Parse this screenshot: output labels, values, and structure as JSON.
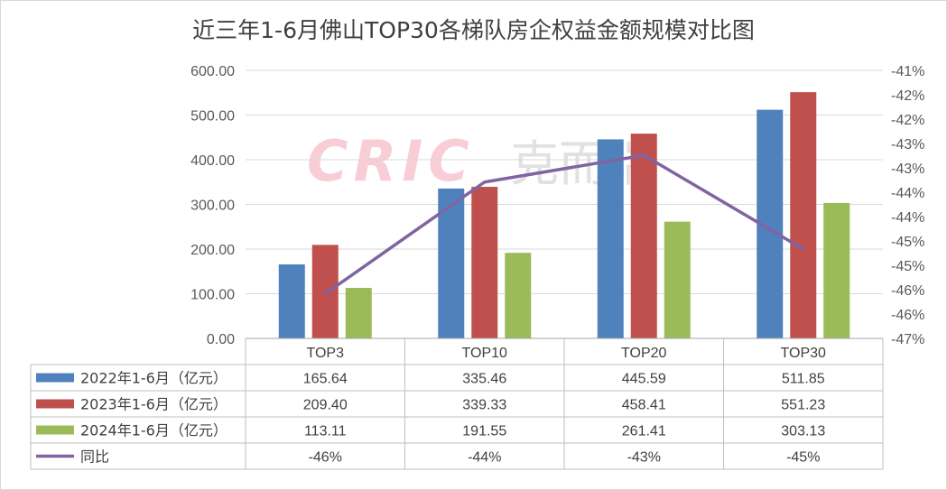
{
  "title": "近三年1-6月佛山TOP30各梯队房企权益金额规模对比图",
  "watermark": {
    "latin": "CRIC",
    "cn": "克而瑞"
  },
  "chart_data": {
    "type": "bar",
    "categories": [
      "TOP3",
      "TOP10",
      "TOP20",
      "TOP30"
    ],
    "series": [
      {
        "name": "2022年1-6月（亿元）",
        "type": "bar",
        "color": "#4f81bd",
        "values": [
          165.64,
          335.46,
          445.59,
          511.85
        ],
        "labels": [
          "165.64",
          "335.46",
          "445.59",
          "511.85"
        ]
      },
      {
        "name": "2023年1-6月（亿元）",
        "type": "bar",
        "color": "#c0504d",
        "values": [
          209.4,
          339.33,
          458.41,
          551.23
        ],
        "labels": [
          "209.40",
          "339.33",
          "458.41",
          "551.23"
        ]
      },
      {
        "name": "2024年1-6月（亿元）",
        "type": "bar",
        "color": "#9bbb59",
        "values": [
          113.11,
          191.55,
          261.41,
          303.13
        ],
        "labels": [
          "113.11",
          "191.55",
          "261.41",
          "303.13"
        ]
      },
      {
        "name": "同比",
        "type": "line",
        "axis": "right",
        "color": "#8064a2",
        "values": [
          -0.46,
          -0.435,
          -0.429,
          -0.45
        ],
        "labels": [
          "-46%",
          "-44%",
          "-43%",
          "-45%"
        ]
      }
    ],
    "y_left": {
      "ylim": [
        0,
        600
      ],
      "ticks": [
        "600.00",
        "500.00",
        "400.00",
        "300.00",
        "200.00",
        "100.00",
        "0.00"
      ]
    },
    "y_right": {
      "ylim": [
        -0.47,
        -0.41
      ],
      "ticks": [
        "-41%",
        "-42%",
        "-42%",
        "-43%",
        "-43%",
        "-44%",
        "-44%",
        "-45%",
        "-45%",
        "-46%",
        "-46%",
        "-47%"
      ]
    },
    "grid": true,
    "legend": "data-table"
  }
}
